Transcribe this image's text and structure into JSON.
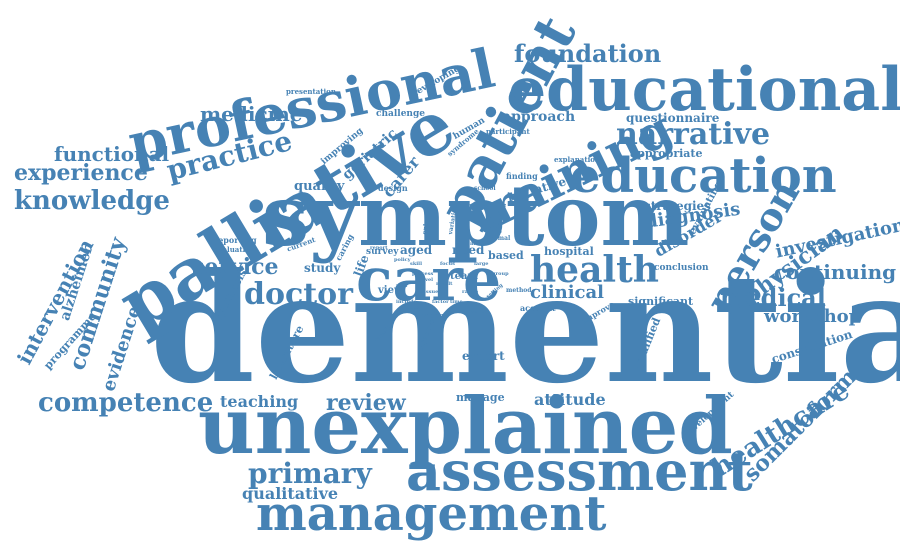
{
  "colors": {
    "text": "#4682b4",
    "background": "#ffffff"
  },
  "words": [
    {
      "text": "dementia"
    },
    {
      "text": "symptom"
    },
    {
      "text": "unexplained"
    },
    {
      "text": "palliative"
    },
    {
      "text": "care"
    },
    {
      "text": "assessment"
    },
    {
      "text": "management"
    },
    {
      "text": "professional"
    },
    {
      "text": "educational"
    },
    {
      "text": "education"
    },
    {
      "text": "patient"
    },
    {
      "text": "training"
    },
    {
      "text": "health"
    },
    {
      "text": "person"
    },
    {
      "text": "narrative"
    },
    {
      "text": "doctor"
    },
    {
      "text": "primary"
    },
    {
      "text": "healthcare"
    },
    {
      "text": "somatoform"
    },
    {
      "text": "foundation"
    },
    {
      "text": "practice"
    },
    {
      "text": "knowledge"
    },
    {
      "text": "experience"
    },
    {
      "text": "functional"
    },
    {
      "text": "medicine"
    },
    {
      "text": "competence"
    },
    {
      "text": "service"
    },
    {
      "text": "medical"
    },
    {
      "text": "physician"
    },
    {
      "text": "continuing"
    },
    {
      "text": "investigation"
    },
    {
      "text": "workshop"
    },
    {
      "text": "review"
    },
    {
      "text": "community"
    },
    {
      "text": "intervention"
    },
    {
      "text": "alzheimer"
    },
    {
      "text": "evidence"
    },
    {
      "text": "qualitative"
    },
    {
      "text": "teaching"
    },
    {
      "text": "diagnosis"
    },
    {
      "text": "disorder"
    },
    {
      "text": "clinical"
    },
    {
      "text": "attitude"
    },
    {
      "text": "approach"
    },
    {
      "text": "questionnaire"
    },
    {
      "text": "appropriate"
    },
    {
      "text": "strategies"
    },
    {
      "text": "hospital"
    },
    {
      "text": "carer"
    },
    {
      "text": "geriatric"
    },
    {
      "text": "quality"
    },
    {
      "text": "initiative"
    },
    {
      "text": "expert"
    },
    {
      "text": "manage"
    },
    {
      "text": "consultation"
    },
    {
      "text": "significant"
    },
    {
      "text": "qualified"
    },
    {
      "text": "development"
    },
    {
      "text": "evaluating"
    },
    {
      "text": "conclusion"
    },
    {
      "text": "programme"
    },
    {
      "text": "literature"
    },
    {
      "text": "synthesis"
    },
    {
      "text": "study"
    },
    {
      "text": "aged"
    },
    {
      "text": "need"
    },
    {
      "text": "based"
    },
    {
      "text": "view"
    },
    {
      "text": "life"
    },
    {
      "text": "team"
    },
    {
      "text": "survey"
    },
    {
      "text": "caring"
    },
    {
      "text": "design"
    },
    {
      "text": "challenge"
    },
    {
      "text": "improving"
    },
    {
      "text": "developing"
    },
    {
      "text": "presentation"
    },
    {
      "text": "human"
    },
    {
      "text": "participant"
    },
    {
      "text": "explanation"
    },
    {
      "text": "finding"
    },
    {
      "text": "reporting"
    },
    {
      "text": "evaluation"
    },
    {
      "text": "current"
    },
    {
      "text": "account"
    },
    {
      "text": "improve"
    },
    {
      "text": "method"
    },
    {
      "text": "paper"
    },
    {
      "text": "school"
    },
    {
      "text": "syndrome"
    },
    {
      "text": "objective"
    },
    {
      "text": "family"
    },
    {
      "text": "variation"
    },
    {
      "text": "planning"
    },
    {
      "text": "enhance"
    },
    {
      "text": "formal"
    },
    {
      "text": "result"
    },
    {
      "text": "level"
    },
    {
      "text": "policy"
    },
    {
      "text": "setting"
    },
    {
      "text": "year"
    },
    {
      "text": "report"
    },
    {
      "text": "process"
    },
    {
      "text": "mind"
    },
    {
      "text": "skill"
    },
    {
      "text": "issue"
    },
    {
      "text": "focus"
    },
    {
      "text": "range"
    },
    {
      "text": "large"
    },
    {
      "text": "time"
    },
    {
      "text": "work"
    },
    {
      "text": "factor"
    },
    {
      "text": "include"
    },
    {
      "text": "local"
    },
    {
      "text": "group"
    }
  ]
}
